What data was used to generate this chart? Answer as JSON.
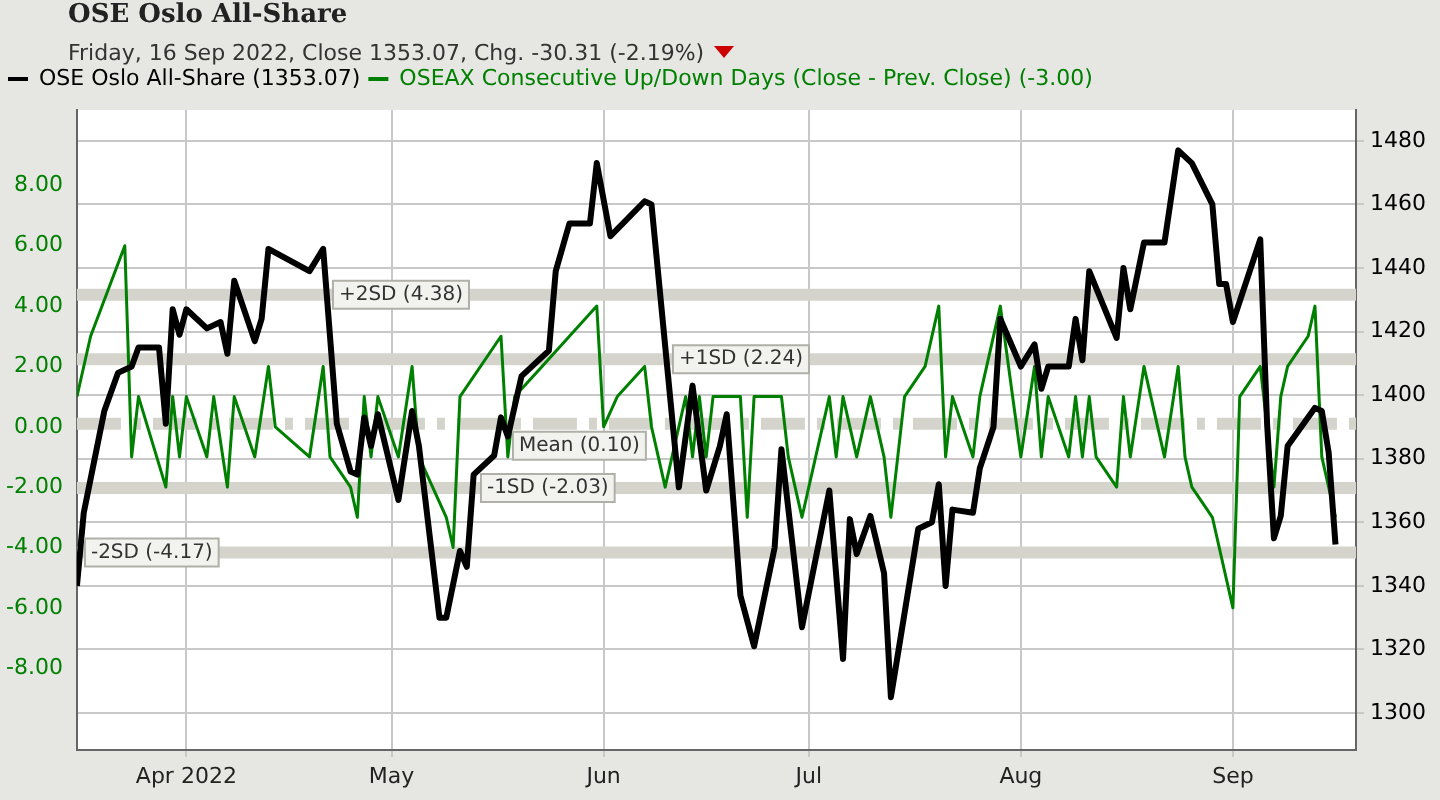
{
  "chart_data": {
    "type": "line",
    "title": "OSE Oslo All-Share",
    "subtitle": "Friday, 16 Sep 2022, Close 1353.07, Chg. -30.31 (-2.19%)",
    "xlim": [
      "2022-03-16",
      "2022-09-19"
    ],
    "xticks": [
      {
        "value": "2022-04-01",
        "label": "Apr 2022"
      },
      {
        "value": "2022-05-01",
        "label": "May"
      },
      {
        "value": "2022-06-01",
        "label": "Jun"
      },
      {
        "value": "2022-07-01",
        "label": "Jul"
      },
      {
        "value": "2022-08-01",
        "label": "Aug"
      },
      {
        "value": "2022-09-01",
        "label": "Sep"
      }
    ],
    "ylim": [
      -10.7,
      10.5
    ],
    "yticks": [
      {
        "value": -8,
        "label": "-8.00"
      },
      {
        "value": -6,
        "label": "-6.00"
      },
      {
        "value": -4,
        "label": "-4.00"
      },
      {
        "value": -2,
        "label": "-2.00"
      },
      {
        "value": 0,
        "label": "0.00"
      },
      {
        "value": 2,
        "label": "2.00"
      },
      {
        "value": 4,
        "label": "4.00"
      },
      {
        "value": 6,
        "label": "6.00"
      },
      {
        "value": 8,
        "label": "8.00"
      }
    ],
    "y2lim": [
      1288.5,
      1489.7
    ],
    "y2ticks": [
      1300,
      1320,
      1340,
      1360,
      1380,
      1400,
      1420,
      1440,
      1460,
      1480
    ],
    "grid": true,
    "legend": "top left",
    "marker": "none",
    "ref_lines": [
      {
        "axis": "y",
        "value": 4.38,
        "label": "+2SD (4.38)",
        "color": "#d4d4cc"
      },
      {
        "axis": "y",
        "value": 2.24,
        "label": "+1SD (2.24)",
        "color": "#d4d4cc"
      },
      {
        "axis": "y",
        "value": 0.1,
        "label": "Mean (0.10)",
        "color": "#d4d4cc",
        "line_style": "dashed"
      },
      {
        "axis": "y",
        "value": -2.03,
        "label": "-1SD (-2.03)",
        "color": "#d4d4cc"
      },
      {
        "axis": "y",
        "value": -4.17,
        "label": "-2SD (-4.17)",
        "color": "#d4d4cc"
      }
    ],
    "series": [
      {
        "name": "OSE Oslo All-Share (1353.07)",
        "color": "#000000",
        "axis": "y2",
        "x": [
          "2022-03-16",
          "2022-03-17",
          "2022-03-20",
          "2022-03-22",
          "2022-03-24",
          "2022-03-25",
          "2022-03-28",
          "2022-03-29",
          "2022-03-30",
          "2022-03-31",
          "2022-04-01",
          "2022-04-04",
          "2022-04-06",
          "2022-04-07",
          "2022-04-08",
          "2022-04-11",
          "2022-04-12",
          "2022-04-13",
          "2022-04-19",
          "2022-04-21",
          "2022-04-23",
          "2022-04-25",
          "2022-04-26",
          "2022-04-27",
          "2022-04-28",
          "2022-04-29",
          "2022-05-02",
          "2022-05-04",
          "2022-05-05",
          "2022-05-08",
          "2022-05-09",
          "2022-05-11",
          "2022-05-12",
          "2022-05-13",
          "2022-05-16",
          "2022-05-17",
          "2022-05-18",
          "2022-05-20",
          "2022-05-24",
          "2022-05-25",
          "2022-05-27",
          "2022-05-30",
          "2022-05-31",
          "2022-06-02",
          "2022-06-07",
          "2022-06-08",
          "2022-06-12",
          "2022-06-14",
          "2022-06-16",
          "2022-06-18",
          "2022-06-19",
          "2022-06-21",
          "2022-06-23",
          "2022-06-26",
          "2022-06-27",
          "2022-06-30",
          "2022-07-04",
          "2022-07-06",
          "2022-07-07",
          "2022-07-08",
          "2022-07-10",
          "2022-07-12",
          "2022-07-13",
          "2022-07-17",
          "2022-07-19",
          "2022-07-20",
          "2022-07-21",
          "2022-07-22",
          "2022-07-25",
          "2022-07-26",
          "2022-07-28",
          "2022-07-29",
          "2022-08-01",
          "2022-08-03",
          "2022-08-04",
          "2022-08-05",
          "2022-08-08",
          "2022-08-09",
          "2022-08-10",
          "2022-08-11",
          "2022-08-15",
          "2022-08-16",
          "2022-08-17",
          "2022-08-19",
          "2022-08-22",
          "2022-08-24",
          "2022-08-26",
          "2022-08-29",
          "2022-08-30",
          "2022-08-31",
          "2022-09-01",
          "2022-09-05",
          "2022-09-06",
          "2022-09-07",
          "2022-09-08",
          "2022-09-09",
          "2022-09-13",
          "2022-09-14",
          "2022-09-15",
          "2022-09-16"
        ],
        "values": [
          1340,
          1363,
          1395,
          1407,
          1409,
          1415,
          1415,
          1391,
          1427,
          1419,
          1427,
          1421,
          1423,
          1413,
          1436,
          1417,
          1424,
          1446,
          1439,
          1446,
          1391,
          1376,
          1375,
          1393,
          1384,
          1394,
          1367,
          1395,
          1384,
          1330,
          1330,
          1351,
          1346,
          1375,
          1381,
          1393,
          1387,
          1406,
          1414,
          1439,
          1454,
          1454,
          1473,
          1450,
          1461,
          1460,
          1371,
          1403,
          1370,
          1384,
          1394,
          1337,
          1321,
          1352,
          1383,
          1327,
          1370,
          1317,
          1361,
          1350,
          1362,
          1344,
          1305,
          1358,
          1360,
          1372,
          1340,
          1364,
          1363,
          1377,
          1390,
          1424,
          1409,
          1416,
          1402,
          1409,
          1409,
          1424,
          1411,
          1439,
          1418,
          1440,
          1427,
          1448,
          1448,
          1477,
          1473,
          1460,
          1435,
          1435,
          1423,
          1449,
          1391,
          1355,
          1362,
          1384,
          1396,
          1395,
          1382,
          1353
        ]
      },
      {
        "name": "OSEAX Consecutive Up/Down Days (Close - Prev. Close) (-3.00)",
        "color": "#008000",
        "axis": "y",
        "x": [
          "2022-03-16",
          "2022-03-18",
          "2022-03-23",
          "2022-03-24",
          "2022-03-25",
          "2022-03-29",
          "2022-03-30",
          "2022-03-31",
          "2022-04-01",
          "2022-04-04",
          "2022-04-05",
          "2022-04-07",
          "2022-04-08",
          "2022-04-11",
          "2022-04-13",
          "2022-04-14",
          "2022-04-19",
          "2022-04-21",
          "2022-04-22",
          "2022-04-25",
          "2022-04-26",
          "2022-04-27",
          "2022-04-28",
          "2022-04-29",
          "2022-05-02",
          "2022-05-04",
          "2022-05-05",
          "2022-05-09",
          "2022-05-10",
          "2022-05-11",
          "2022-05-17",
          "2022-05-18",
          "2022-05-19",
          "2022-05-23",
          "2022-05-31",
          "2022-06-01",
          "2022-06-03",
          "2022-06-07",
          "2022-06-08",
          "2022-06-09",
          "2022-06-10",
          "2022-06-13",
          "2022-06-14",
          "2022-06-15",
          "2022-06-16",
          "2022-06-17",
          "2022-06-21",
          "2022-06-22",
          "2022-06-23",
          "2022-06-27",
          "2022-06-28",
          "2022-06-30",
          "2022-07-04",
          "2022-07-05",
          "2022-07-06",
          "2022-07-08",
          "2022-07-10",
          "2022-07-12",
          "2022-07-13",
          "2022-07-15",
          "2022-07-18",
          "2022-07-20",
          "2022-07-21",
          "2022-07-22",
          "2022-07-25",
          "2022-07-26",
          "2022-07-29",
          "2022-08-01",
          "2022-08-03",
          "2022-08-04",
          "2022-08-05",
          "2022-08-08",
          "2022-08-09",
          "2022-08-10",
          "2022-08-11",
          "2022-08-12",
          "2022-08-15",
          "2022-08-16",
          "2022-08-17",
          "2022-08-19",
          "2022-08-22",
          "2022-08-24",
          "2022-08-25",
          "2022-08-26",
          "2022-08-29",
          "2022-09-01",
          "2022-09-02",
          "2022-09-05",
          "2022-09-07",
          "2022-09-08",
          "2022-09-09",
          "2022-09-12",
          "2022-09-13",
          "2022-09-14",
          "2022-09-16"
        ],
        "values": [
          1,
          3,
          6,
          -1,
          1,
          -2,
          1,
          -1,
          1,
          -1,
          1,
          -2,
          1,
          -1,
          2,
          0,
          -1,
          2,
          -1,
          -2,
          -3,
          1,
          -1,
          1,
          -1,
          2,
          -1,
          -3,
          -4,
          1,
          3,
          -1,
          1,
          2,
          4,
          0,
          1,
          2,
          0,
          -1,
          -2,
          1,
          -1,
          1,
          -1,
          1,
          1,
          -3,
          1,
          1,
          -1,
          -3,
          1,
          -1,
          1,
          -1,
          1,
          -1,
          -3,
          1,
          2,
          4,
          -1,
          1,
          -1,
          1,
          4,
          -1,
          2,
          -1,
          1,
          -1,
          1,
          -1,
          1,
          -1,
          -2,
          1,
          -1,
          2,
          -1,
          2,
          -1,
          -2,
          -3,
          -6,
          1,
          2,
          -2,
          1,
          2,
          3,
          4,
          -1,
          -3
        ]
      }
    ]
  }
}
